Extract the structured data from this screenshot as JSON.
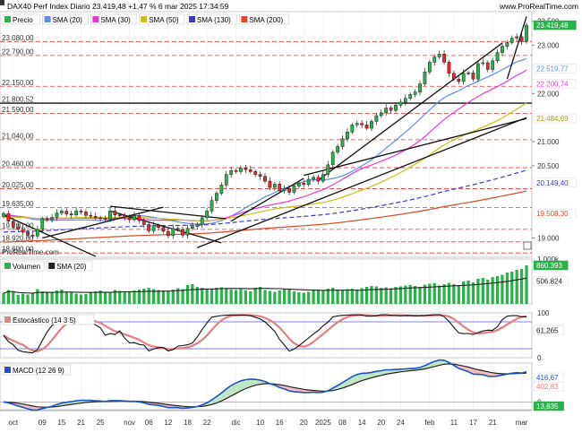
{
  "header": {
    "title": "DAX40 Perf Index Diario 23.419,48 +1,47 % 6 mar 2025 17:34:59",
    "brand": "www.ProRealTime.com",
    "watermark": "ProRealTime.com"
  },
  "colors": {
    "up": "#2ab24a",
    "down": "#e8252b",
    "sma20": "#5e8ee8",
    "sma30": "#e83ad6",
    "sma50": "#c8c010",
    "sma130": "#3a3ac8",
    "sma200": "#d84a2a",
    "volume": "#2ab24a",
    "hline_red": "#e23b3b",
    "stoch_k": "#111111",
    "stoch_d": "#e08080",
    "macd": "#1b52c8",
    "signal": "#222222"
  },
  "legends": {
    "price": [
      {
        "label": "Precio",
        "color": "#2ab24a"
      },
      {
        "label": "SMA (20)",
        "color": "#5e8ee8"
      },
      {
        "label": "SMA (30)",
        "color": "#e83ad6"
      },
      {
        "label": "SMA (50)",
        "color": "#c8c010"
      },
      {
        "label": "SMA (130)",
        "color": "#3a3ac8"
      },
      {
        "label": "SMA (200)",
        "color": "#d84a2a"
      }
    ],
    "volume": [
      {
        "label": "Volumen",
        "color": "#2ab24a"
      },
      {
        "label": "SMA (20)",
        "color": "#222222"
      }
    ],
    "stoch": [
      {
        "label": "Estocástico (14 3 5)",
        "color": "#e08080"
      }
    ],
    "macd": [
      {
        "label": "MACD (12 26 9)",
        "color": "#1b52c8"
      }
    ]
  },
  "chart_data": [
    {
      "type": "candlestick",
      "panel": "price",
      "ylim": [
        18600,
        23700
      ],
      "right_ticks": [
        {
          "value": 23500,
          "label": "23.500"
        },
        {
          "value": 23000,
          "label": "23.000"
        },
        {
          "value": 22000,
          "label": "22.000"
        },
        {
          "value": 21000,
          "label": "21.000"
        },
        {
          "value": 20500,
          "label": "20.500"
        },
        {
          "value": 19000,
          "label": "19.000"
        }
      ],
      "left_levels": [
        {
          "value": 23080,
          "label": "23.080,00",
          "color": "#e23b3b",
          "style": "dashed"
        },
        {
          "value": 22790,
          "label": "22.790,00",
          "color": "#e23b3b",
          "style": "dashed"
        },
        {
          "value": 22150,
          "label": "22.150,00",
          "color": "#e23b3b",
          "style": "dashed"
        },
        {
          "value": 21800.52,
          "label": "21.800,52",
          "color": "#111111",
          "style": "solid"
        },
        {
          "value": 21590,
          "label": "21.590,00",
          "color": "#e23b3b",
          "style": "dashed"
        },
        {
          "value": 21040,
          "label": "21.040,00",
          "color": "#e23b3b",
          "style": "dashed"
        },
        {
          "value": 20460,
          "label": "20.460,00",
          "color": "#e23b3b",
          "style": "dashed"
        },
        {
          "value": 20025,
          "label": "20.025,00",
          "color": "#e23b3b",
          "style": "dashed"
        },
        {
          "value": 19635,
          "label": "19.635,00",
          "color": "#e23b3b",
          "style": "dashed"
        },
        {
          "value": 19180,
          "label": "19.180,00",
          "color": "#e23b3b",
          "style": "dashed"
        },
        {
          "value": 18920,
          "label": "18.920,00",
          "color": "#e23b3b",
          "style": "dashed"
        },
        {
          "value": 18690,
          "label": "18.690,00",
          "color": "#e23b3b",
          "style": "dashed"
        }
      ],
      "badges": [
        {
          "value": 23419.48,
          "label": "23.419,48",
          "bg": "#2ab24a",
          "fg": "#ffffff"
        },
        {
          "value": 22519.77,
          "label": "22.519,77",
          "bg": "#ffffff",
          "fg": "#5e8ee8"
        },
        {
          "value": 22200.74,
          "label": "22.200,74",
          "bg": "#ffffff",
          "fg": "#e83ad6"
        },
        {
          "value": 21484.69,
          "label": "21.484,69",
          "bg": "#ffffff",
          "fg": "#a8a000"
        },
        {
          "value": 20149.4,
          "label": "20.149,40",
          "bg": "#ffffff",
          "fg": "#3a3ac8"
        },
        {
          "value": 19508.3,
          "label": "19.508,30",
          "bg": "#ffffff",
          "fg": "#d84a2a"
        }
      ],
      "sessions": 109,
      "closes": [
        19510,
        19350,
        19230,
        19180,
        19120,
        19060,
        19040,
        19180,
        19400,
        19380,
        19430,
        19520,
        19560,
        19500,
        19480,
        19560,
        19540,
        19470,
        19450,
        19420,
        19410,
        19390,
        19560,
        19480,
        19470,
        19420,
        19380,
        19470,
        19360,
        19280,
        19150,
        19260,
        19220,
        19140,
        19050,
        19200,
        19180,
        19060,
        19200,
        19240,
        19280,
        19420,
        19560,
        19780,
        19930,
        20100,
        20320,
        20400,
        20380,
        20450,
        20420,
        20380,
        20320,
        20280,
        20180,
        20050,
        20120,
        19980,
        20020,
        19950,
        20080,
        20140,
        20110,
        20220,
        20260,
        20180,
        20320,
        20520,
        20780,
        20900,
        21060,
        21200,
        21350,
        21380,
        21350,
        21280,
        21420,
        21540,
        21600,
        21700,
        21650,
        21760,
        21820,
        21900,
        21980,
        22030,
        22200,
        22450,
        22650,
        22760,
        22820,
        22650,
        22420,
        22300,
        22250,
        22420,
        22430,
        22300,
        22620,
        22640,
        22500,
        22680,
        22850,
        22980,
        23060,
        23150,
        23180,
        23080,
        23419
      ]
    },
    {
      "type": "bar",
      "panel": "volume",
      "ylim": [
        0,
        1000000
      ],
      "right_ticks": [
        {
          "value": 1000000,
          "label": "1.000k"
        }
      ],
      "badges": [
        {
          "value": 860393,
          "label": "860.393",
          "bg": "#2ab24a",
          "fg": "#ffffff"
        },
        {
          "value": 506824,
          "label": "506.824",
          "bg": "#ffffff",
          "fg": "#222222"
        }
      ],
      "values": [
        240000,
        310000,
        270000,
        200000,
        230000,
        210000,
        240000,
        330000,
        280000,
        260000,
        250000,
        300000,
        320000,
        270000,
        250000,
        230000,
        210000,
        220000,
        260000,
        280000,
        300000,
        250000,
        270000,
        310000,
        290000,
        280000,
        260000,
        300000,
        320000,
        340000,
        360000,
        330000,
        310000,
        300000,
        290000,
        320000,
        350000,
        330000,
        420000,
        440000,
        380000,
        360000,
        340000,
        330000,
        360000,
        370000,
        340000,
        320000,
        310000,
        330000,
        300000,
        280000,
        360000,
        380000,
        310000,
        290000,
        270000,
        300000,
        320000,
        330000,
        280000,
        260000,
        250000,
        270000,
        300000,
        310000,
        290000,
        340000,
        360000,
        320000,
        300000,
        330000,
        340000,
        320000,
        350000,
        380000,
        400000,
        390000,
        360000,
        370000,
        350000,
        380000,
        390000,
        410000,
        420000,
        400000,
        380000,
        430000,
        450000,
        460000,
        410000,
        440000,
        470000,
        440000,
        420000,
        500000,
        520000,
        480000,
        560000,
        580000,
        540000,
        600000,
        620000,
        650000,
        700000,
        720000,
        760000,
        780000,
        860393
      ]
    },
    {
      "type": "line",
      "panel": "stochastic",
      "ylim": [
        0,
        100
      ],
      "right_ticks": [
        {
          "value": 100,
          "label": "100"
        },
        {
          "value": 0,
          "label": "0"
        }
      ],
      "levels": [
        80,
        20
      ],
      "badges": [
        {
          "value": 63.794,
          "label": "63,794",
          "bg": "#ffffff",
          "fg": "#e08080"
        },
        {
          "value": 61.265,
          "label": "61,265",
          "bg": "#ffffff",
          "fg": "#111111"
        }
      ]
    },
    {
      "type": "line",
      "panel": "macd",
      "ylim": [
        -100,
        500
      ],
      "right_ticks": [
        {
          "value": 0,
          "label": "0"
        }
      ],
      "badges": [
        {
          "value": 416.67,
          "label": "416,67",
          "bg": "#ffffff",
          "fg": "#1b52c8"
        },
        {
          "value": 402.83,
          "label": "402,83",
          "bg": "#ffffff",
          "fg": "#e08080"
        },
        {
          "value": 13.835,
          "label": "13,835",
          "bg": "#2ab24a",
          "fg": "#ffffff"
        }
      ]
    }
  ],
  "x_axis": {
    "labels": [
      {
        "i": 2,
        "label": "oct"
      },
      {
        "i": 8,
        "label": "09"
      },
      {
        "i": 12,
        "label": "15"
      },
      {
        "i": 16,
        "label": "21"
      },
      {
        "i": 20,
        "label": "25"
      },
      {
        "i": 26,
        "label": "nov"
      },
      {
        "i": 30,
        "label": "06"
      },
      {
        "i": 34,
        "label": "12"
      },
      {
        "i": 38,
        "label": "18"
      },
      {
        "i": 42,
        "label": "22"
      },
      {
        "i": 48,
        "label": "dic"
      },
      {
        "i": 53,
        "label": "10"
      },
      {
        "i": 57,
        "label": "16"
      },
      {
        "i": 62,
        "label": "20"
      },
      {
        "i": 66,
        "label": "2025"
      },
      {
        "i": 70,
        "label": "08"
      },
      {
        "i": 74,
        "label": "14"
      },
      {
        "i": 78,
        "label": "20"
      },
      {
        "i": 82,
        "label": "24"
      },
      {
        "i": 88,
        "label": "feb"
      },
      {
        "i": 93,
        "label": "11"
      },
      {
        "i": 97,
        "label": "17"
      },
      {
        "i": 101,
        "label": "21"
      },
      {
        "i": 107,
        "label": "mar"
      }
    ]
  }
}
